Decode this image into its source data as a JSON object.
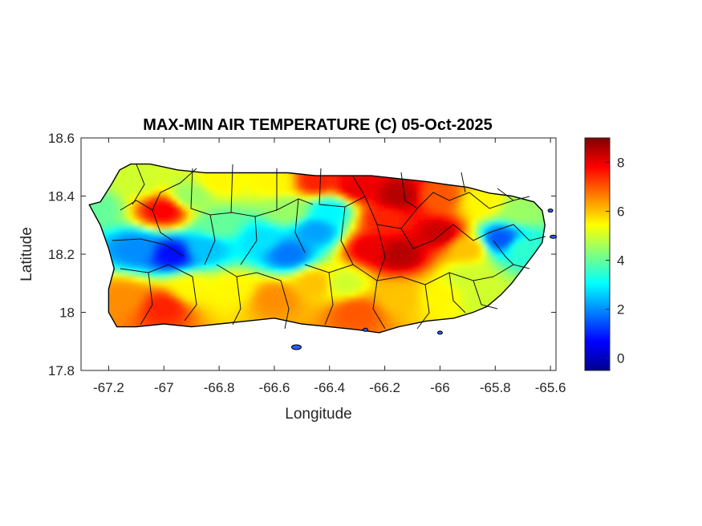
{
  "chart_data": {
    "type": "heatmap",
    "title": "MAX-MIN AIR TEMPERATURE (C) 05-Oct-2025",
    "xlabel": "Longitude",
    "ylabel": "Latitude",
    "xlim": [
      -67.3,
      -65.58
    ],
    "ylim": [
      17.8,
      18.6
    ],
    "xticks": [
      -67.2,
      -67,
      -66.8,
      -66.6,
      -66.4,
      -66.2,
      -66,
      -65.8,
      -65.6
    ],
    "xtick_labels": [
      "-67.2",
      "-67",
      "-66.8",
      "-66.6",
      "-66.4",
      "-66.2",
      "-66",
      "-65.8",
      "-65.6"
    ],
    "yticks": [
      17.8,
      18,
      18.2,
      18.4,
      18.6
    ],
    "ytick_labels": [
      "17.8",
      "18",
      "18.2",
      "18.4",
      "18.6"
    ],
    "colorbar": {
      "colormap": "jet",
      "range": [
        -0.5,
        9
      ],
      "ticks": [
        0,
        2,
        4,
        6,
        8
      ],
      "tick_labels": [
        "0",
        "2",
        "4",
        "6",
        "8"
      ]
    },
    "grid": false,
    "field_samples": [
      {
        "lon": -67.25,
        "lat": 18.36,
        "value": 4.0
      },
      {
        "lon": -67.1,
        "lat": 18.45,
        "value": 5.0
      },
      {
        "lon": -67.0,
        "lat": 18.35,
        "value": 7.8
      },
      {
        "lon": -66.9,
        "lat": 18.4,
        "value": 4.5
      },
      {
        "lon": -66.8,
        "lat": 18.45,
        "value": 5.5
      },
      {
        "lon": -66.6,
        "lat": 18.45,
        "value": 5.5
      },
      {
        "lon": -66.45,
        "lat": 18.45,
        "value": 7.5
      },
      {
        "lon": -66.3,
        "lat": 18.43,
        "value": 8.0
      },
      {
        "lon": -66.15,
        "lat": 18.4,
        "value": 8.5
      },
      {
        "lon": -66.0,
        "lat": 18.4,
        "value": 7.0
      },
      {
        "lon": -65.85,
        "lat": 18.38,
        "value": 5.5
      },
      {
        "lon": -65.7,
        "lat": 18.35,
        "value": 4.5
      },
      {
        "lon": -67.1,
        "lat": 18.22,
        "value": 2.0
      },
      {
        "lon": -66.97,
        "lat": 18.2,
        "value": 0.8
      },
      {
        "lon": -66.85,
        "lat": 18.22,
        "value": 2.5
      },
      {
        "lon": -66.65,
        "lat": 18.25,
        "value": 2.8
      },
      {
        "lon": -66.55,
        "lat": 18.2,
        "value": 1.8
      },
      {
        "lon": -66.45,
        "lat": 18.28,
        "value": 2.2
      },
      {
        "lon": -66.4,
        "lat": 18.35,
        "value": 3.0
      },
      {
        "lon": -66.25,
        "lat": 18.22,
        "value": 8.0
      },
      {
        "lon": -66.15,
        "lat": 18.2,
        "value": 8.5
      },
      {
        "lon": -66.0,
        "lat": 18.27,
        "value": 8.3
      },
      {
        "lon": -65.9,
        "lat": 18.22,
        "value": 6.0
      },
      {
        "lon": -65.78,
        "lat": 18.25,
        "value": 1.5
      },
      {
        "lon": -65.7,
        "lat": 18.22,
        "value": 3.5
      },
      {
        "lon": -67.15,
        "lat": 18.05,
        "value": 6.5
      },
      {
        "lon": -67.0,
        "lat": 18.02,
        "value": 7.5
      },
      {
        "lon": -66.9,
        "lat": 18.08,
        "value": 5.5
      },
      {
        "lon": -66.75,
        "lat": 18.08,
        "value": 5.5
      },
      {
        "lon": -66.6,
        "lat": 18.05,
        "value": 6.5
      },
      {
        "lon": -66.45,
        "lat": 18.1,
        "value": 6.0
      },
      {
        "lon": -66.3,
        "lat": 18.0,
        "value": 7.0
      },
      {
        "lon": -66.15,
        "lat": 18.05,
        "value": 6.0
      },
      {
        "lon": -66.0,
        "lat": 18.05,
        "value": 5.5
      },
      {
        "lon": -65.85,
        "lat": 18.05,
        "value": 5.0
      },
      {
        "lon": -65.9,
        "lat": 18.12,
        "value": 5.0
      },
      {
        "lon": -66.35,
        "lat": 18.1,
        "value": 5.0
      },
      {
        "lon": -66.8,
        "lat": 18.3,
        "value": 4.0
      },
      {
        "lon": -66.2,
        "lat": 18.32,
        "value": 7.5
      },
      {
        "lon": -66.55,
        "lat": 18.35,
        "value": 4.5
      }
    ]
  }
}
